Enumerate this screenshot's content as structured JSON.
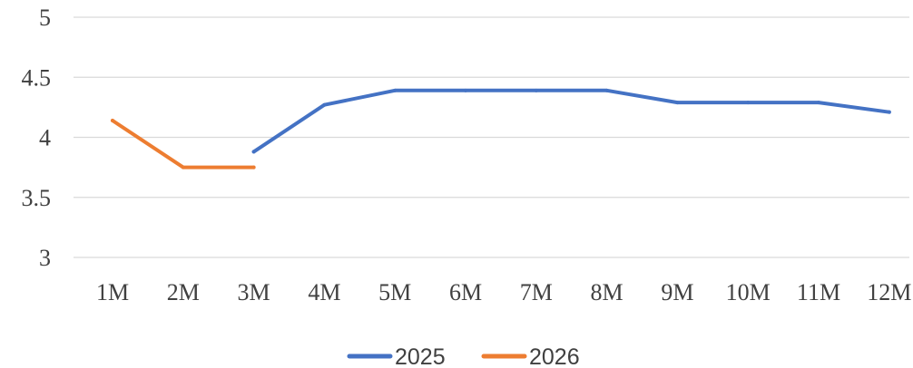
{
  "chart_data": {
    "type": "line",
    "categories": [
      "1M",
      "2M",
      "3M",
      "4M",
      "5M",
      "6M",
      "7M",
      "8M",
      "9M",
      "10M",
      "11M",
      "12M"
    ],
    "y_ticks": [
      "5",
      "4.5",
      "4",
      "3.5",
      "3"
    ],
    "ylim": [
      3,
      5
    ],
    "grid": true,
    "legend_position": "bottom",
    "series": [
      {
        "name": "2025",
        "color": "#4472c4",
        "values": [
          null,
          null,
          3.88,
          4.27,
          4.39,
          4.39,
          4.39,
          4.39,
          4.29,
          4.29,
          4.29,
          4.21
        ]
      },
      {
        "name": "2026",
        "color": "#ed7d31",
        "values": [
          4.14,
          3.75,
          3.75,
          null,
          null,
          null,
          null,
          null,
          null,
          null,
          null,
          null
        ]
      }
    ]
  }
}
